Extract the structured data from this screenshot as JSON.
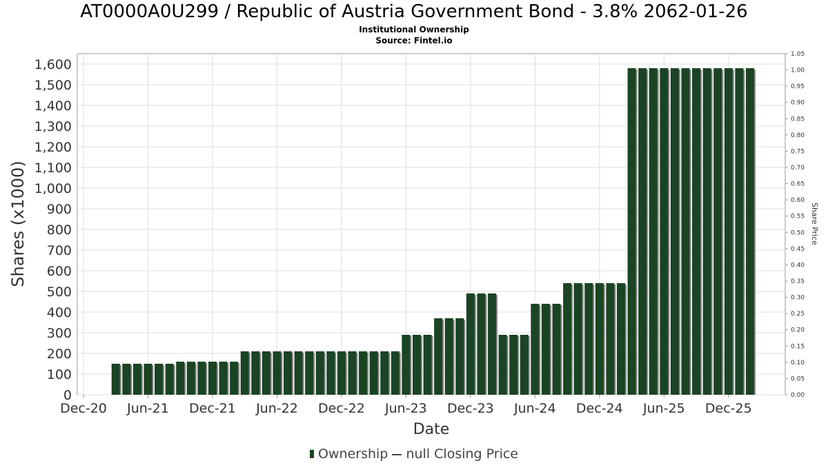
{
  "chart_data": {
    "type": "bar",
    "title": "AT0000A0U299 / Republic of Austria Government Bond - 3.8% 2062-01-26",
    "subtitle": "Institutional Ownership",
    "source": "Source: Fintel.io",
    "xlabel": "Date",
    "ylabel": "Shares (x1000)",
    "y2label": "Share Price",
    "ylim": [
      0,
      1650
    ],
    "y2lim": [
      0,
      1.05
    ],
    "yticks": [
      "0",
      "100",
      "200",
      "300",
      "400",
      "500",
      "600",
      "700",
      "800",
      "900",
      "1,000",
      "1,100",
      "1,200",
      "1,300",
      "1,400",
      "1,500",
      "1,600"
    ],
    "y2ticks": [
      "0.00",
      "0.05",
      "0.10",
      "0.15",
      "0.20",
      "0.25",
      "0.30",
      "0.35",
      "0.40",
      "0.45",
      "0.50",
      "0.55",
      "0.60",
      "0.65",
      "0.70",
      "0.75",
      "0.80",
      "0.85",
      "0.90",
      "0.95",
      "1.00",
      "1.05"
    ],
    "xticks": [
      "Dec-20",
      "Jun-21",
      "Dec-21",
      "Jun-22",
      "Dec-22",
      "Jun-23",
      "Dec-23",
      "Jun-24",
      "Dec-24",
      "Jun-25",
      "Dec-25"
    ],
    "x_start": "Mar-21",
    "series": [
      {
        "name": "Ownership",
        "color": "#1a4423",
        "values": [
          150,
          150,
          150,
          150,
          150,
          150,
          160,
          160,
          160,
          160,
          160,
          160,
          210,
          210,
          210,
          210,
          210,
          210,
          210,
          210,
          210,
          210,
          210,
          210,
          210,
          210,
          210,
          290,
          290,
          290,
          370,
          370,
          370,
          490,
          490,
          490,
          290,
          290,
          290,
          440,
          440,
          440,
          540,
          540,
          540,
          540,
          540,
          540,
          1580,
          1580,
          1580,
          1580,
          1580,
          1580,
          1580,
          1580,
          1580,
          1580,
          1580,
          1580
        ]
      }
    ],
    "legend": [
      "Ownership",
      "null Closing Price"
    ],
    "grid": true,
    "legend_position": "bottom"
  }
}
